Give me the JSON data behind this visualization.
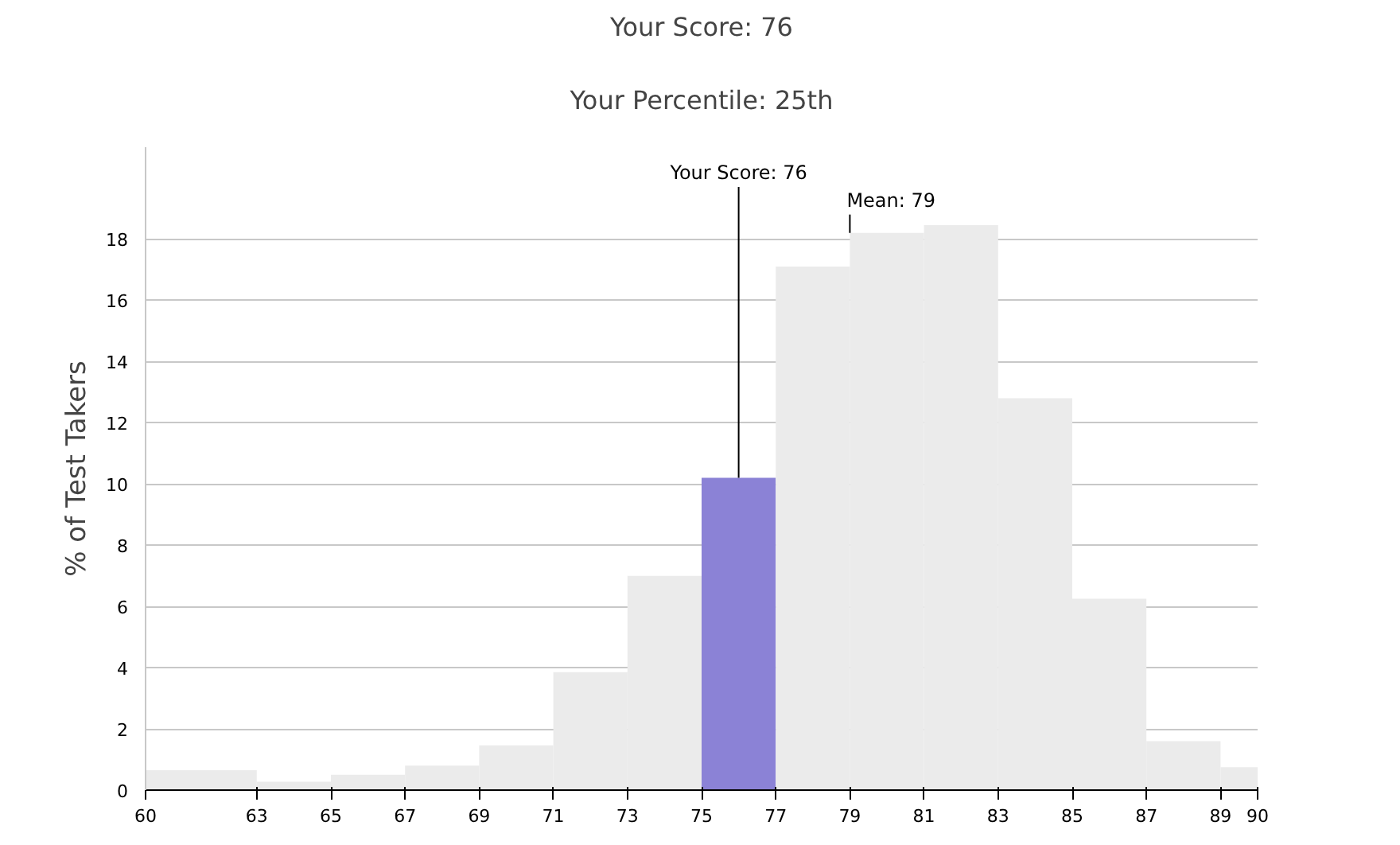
{
  "chart_data": {
    "type": "histogram",
    "title": "Your Score: 76",
    "subtitle": "Your Percentile: 25th",
    "ylabel": "% of Test Takers",
    "bins": [
      60,
      63,
      65,
      67,
      69,
      71,
      73,
      75,
      77,
      79,
      81,
      83,
      85,
      87,
      89,
      90
    ],
    "values": [
      0.65,
      0.27,
      0.5,
      0.8,
      1.46,
      3.85,
      7.0,
      10.2,
      17.1,
      18.2,
      18.45,
      12.8,
      6.25,
      1.6,
      0.75
    ],
    "colors": [
      "#ebebeb",
      "#ebebeb",
      "#ebebeb",
      "#ebebeb",
      "#ebebeb",
      "#ebebeb",
      "#ebebeb",
      "#8b82d6",
      "#ebebeb",
      "#ebebeb",
      "#ebebeb",
      "#ebebeb",
      "#ebebeb",
      "#ebebeb",
      "#ebebeb"
    ],
    "xlim": [
      60,
      90
    ],
    "xticks": [
      60,
      63,
      65,
      67,
      69,
      71,
      73,
      75,
      77,
      79,
      81,
      83,
      85,
      87,
      89,
      90
    ],
    "ylim": [
      0,
      21
    ],
    "yticks": [
      0,
      2,
      4,
      6,
      8,
      10,
      12,
      14,
      16,
      18
    ],
    "grid": "y",
    "ref_lines": [
      {
        "axis": "x",
        "value": 76,
        "label": "Your Score: 76",
        "color": "#000000"
      },
      {
        "axis": "x",
        "value": 79,
        "label": "Mean: 79",
        "color": "#000000"
      }
    ]
  }
}
